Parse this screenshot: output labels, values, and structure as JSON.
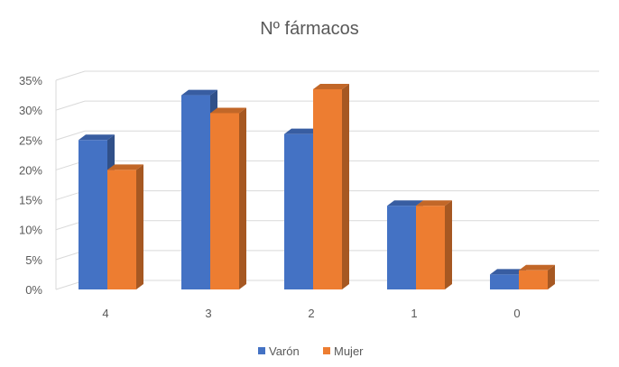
{
  "chart_data": {
    "type": "bar",
    "title": "Nº fármacos",
    "categories": [
      "4",
      "3",
      "2",
      "1",
      "0"
    ],
    "series": [
      {
        "name": "Varón",
        "values": [
          25,
          32.5,
          26,
          14,
          2.5
        ],
        "color": "#4472C4"
      },
      {
        "name": "Mujer",
        "values": [
          20,
          29.5,
          33.5,
          14,
          3.2
        ],
        "color": "#ED7D31"
      }
    ],
    "yticks": [
      "0%",
      "5%",
      "10%",
      "15%",
      "20%",
      "25%",
      "30%",
      "35%"
    ],
    "ylim": [
      0,
      35
    ],
    "grid": true,
    "legend": "bottom",
    "style": "3d-column"
  }
}
